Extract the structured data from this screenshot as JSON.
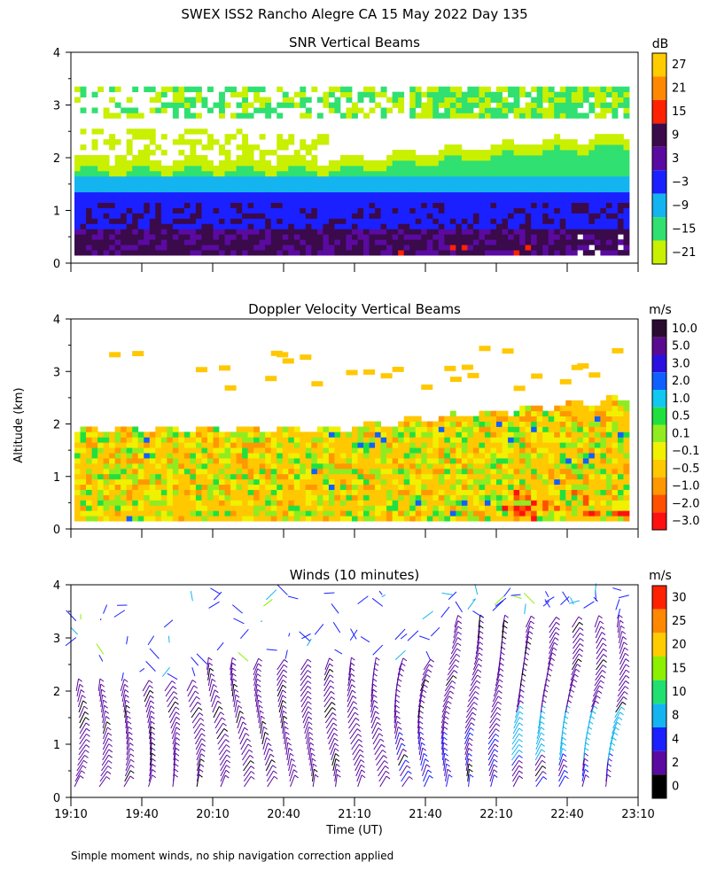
{
  "figure": {
    "title": "SWEX ISS2 Rancho Alegre CA  15 May 2022 Day 135",
    "ylabel": "Altitude (km)",
    "xlabel": "Time (UT)",
    "footnote": "Simple moment winds, no ship navigation correction applied",
    "time_ticks": [
      "19:10",
      "19:40",
      "20:10",
      "20:40",
      "21:10",
      "21:40",
      "22:10",
      "22:40",
      "23:10"
    ]
  },
  "chart_data": [
    {
      "type": "heatmap",
      "title": "SNR Vertical Beams",
      "unit": "dB",
      "x_range": [
        "19:10",
        "23:10"
      ],
      "ylim": [
        0,
        4
      ],
      "y_ticks": [
        "0",
        "1",
        "2",
        "3",
        "4"
      ],
      "colorbar": {
        "labels": [
          "27",
          "21",
          "15",
          "9",
          "3",
          "−3",
          "−9",
          "−15",
          "−21"
        ],
        "colors": [
          "#ffcc00",
          "#ff8800",
          "#ff2200",
          "#3a0a4a",
          "#5a0aa0",
          "#1a20ff",
          "#14b4f0",
          "#30e070",
          "#c8f000"
        ]
      }
    },
    {
      "type": "heatmap",
      "title": "Doppler Velocity Vertical Beams",
      "unit": "m/s",
      "x_range": [
        "19:10",
        "23:10"
      ],
      "ylim": [
        0,
        4
      ],
      "y_ticks": [
        "0",
        "1",
        "2",
        "3",
        "4"
      ],
      "colorbar": {
        "labels": [
          "10.0",
          "5.0",
          "3.0",
          "2.0",
          "1.0",
          "0.5",
          "0.1",
          "−0.1",
          "−0.5",
          "−1.0",
          "−2.0",
          "−3.0"
        ],
        "colors": [
          "#2a0a30",
          "#5a0a90",
          "#2a10e0",
          "#1060ff",
          "#10c8f0",
          "#20e040",
          "#90ec20",
          "#f0f000",
          "#ffc800",
          "#ff9800",
          "#ff5000",
          "#ff1010"
        ]
      }
    },
    {
      "type": "wind_barbs",
      "title": "Winds (10 minutes)",
      "unit": "m/s",
      "x_range": [
        "19:10",
        "23:10"
      ],
      "ylim": [
        0,
        4
      ],
      "y_ticks": [
        "0",
        "1",
        "2",
        "3",
        "4"
      ],
      "colorbar": {
        "labels": [
          "30",
          "25",
          "20",
          "15",
          "10",
          "8",
          "4",
          "2",
          "0"
        ],
        "colors": [
          "#ff2200",
          "#ff8800",
          "#ffcc00",
          "#8cf000",
          "#20e070",
          "#14b4f0",
          "#1a20ff",
          "#5a0aa0",
          "#000000"
        ]
      }
    }
  ]
}
